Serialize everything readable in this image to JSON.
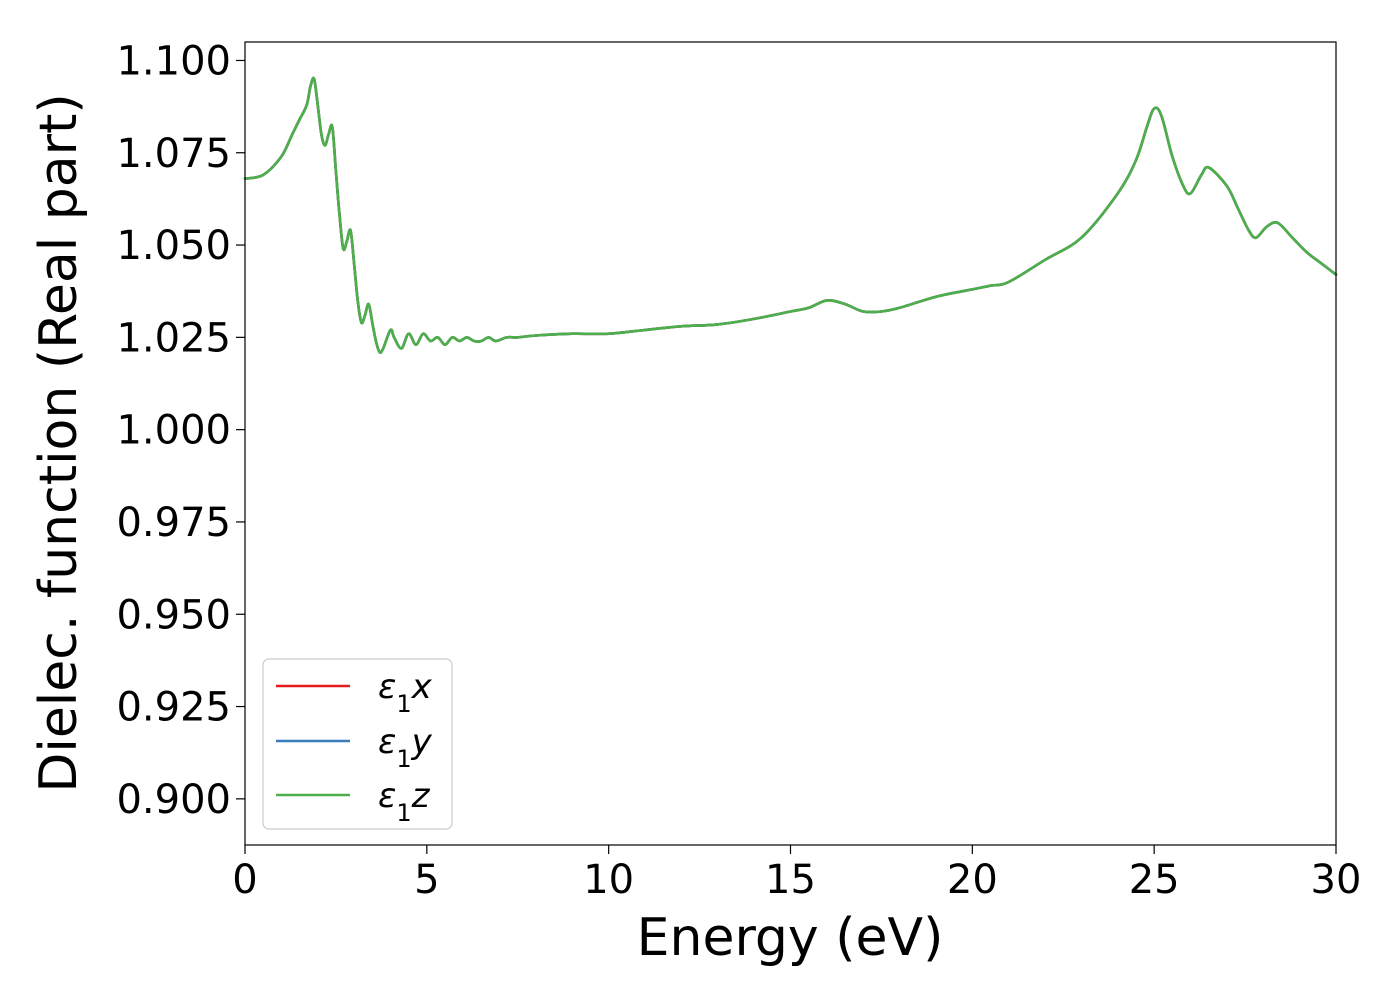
{
  "chart_data": {
    "type": "line",
    "xlabel": "Energy (eV)",
    "ylabel": "Dielec. function (Real part)",
    "xlim": [
      0,
      30
    ],
    "ylim": [
      0.8875,
      1.105
    ],
    "xticks": [
      0,
      5,
      10,
      15,
      20,
      25,
      30
    ],
    "xtick_labels": [
      "0",
      "5",
      "10",
      "15",
      "20",
      "25",
      "30"
    ],
    "yticks": [
      0.9,
      0.925,
      0.95,
      0.975,
      1.0,
      1.025,
      1.05,
      1.075,
      1.1
    ],
    "ytick_labels": [
      "0.900",
      "0.925",
      "0.950",
      "0.975",
      "1.000",
      "1.025",
      "1.050",
      "1.075",
      "1.100"
    ],
    "grid": false,
    "legend_position": "lower-left",
    "series": [
      {
        "name": "ε₁x",
        "name_base": "ε",
        "name_sub": "1",
        "name_suffix": "x",
        "color": "#e41a1c"
      },
      {
        "name": "ε₁y",
        "name_base": "ε",
        "name_sub": "1",
        "name_suffix": "y",
        "color": "#377eb8"
      },
      {
        "name": "ε₁z",
        "name_base": "ε",
        "name_sub": "1",
        "name_suffix": "z",
        "color": "#4daf4a"
      }
    ],
    "x": [
      0,
      0.5,
      1.0,
      1.3,
      1.5,
      1.7,
      1.8,
      1.9,
      2.0,
      2.1,
      2.2,
      2.3,
      2.4,
      2.5,
      2.6,
      2.7,
      2.8,
      2.9,
      3.0,
      3.1,
      3.2,
      3.3,
      3.4,
      3.5,
      3.6,
      3.7,
      3.8,
      4.0,
      4.1,
      4.3,
      4.5,
      4.7,
      4.9,
      5.1,
      5.3,
      5.5,
      5.7,
      5.9,
      6.1,
      6.3,
      6.5,
      6.7,
      6.9,
      7.2,
      7.5,
      8.0,
      9.0,
      10.0,
      11.0,
      12.0,
      13.0,
      14.0,
      15.0,
      15.5,
      16.0,
      16.5,
      17.0,
      17.5,
      18.0,
      19.0,
      20.0,
      20.5,
      21.0,
      22.0,
      23.0,
      24.0,
      24.5,
      24.8,
      25.0,
      25.2,
      25.5,
      25.8,
      26.0,
      26.3,
      26.5,
      27.0,
      27.3,
      27.6,
      27.8,
      28.1,
      28.4,
      28.8,
      29.2,
      29.6,
      30.0
    ],
    "y": [
      1.068,
      1.069,
      1.074,
      1.08,
      1.084,
      1.088,
      1.093,
      1.095,
      1.088,
      1.08,
      1.077,
      1.08,
      1.082,
      1.07,
      1.058,
      1.049,
      1.051,
      1.054,
      1.045,
      1.035,
      1.029,
      1.031,
      1.034,
      1.029,
      1.024,
      1.021,
      1.022,
      1.027,
      1.025,
      1.022,
      1.026,
      1.023,
      1.026,
      1.024,
      1.025,
      1.023,
      1.025,
      1.024,
      1.025,
      1.024,
      1.024,
      1.025,
      1.024,
      1.025,
      1.025,
      1.0255,
      1.026,
      1.026,
      1.027,
      1.028,
      1.0285,
      1.03,
      1.032,
      1.033,
      1.035,
      1.034,
      1.032,
      1.032,
      1.033,
      1.036,
      1.038,
      1.039,
      1.04,
      1.046,
      1.052,
      1.064,
      1.073,
      1.082,
      1.087,
      1.085,
      1.074,
      1.066,
      1.064,
      1.069,
      1.071,
      1.066,
      1.06,
      1.054,
      1.052,
      1.055,
      1.056,
      1.052,
      1.048,
      1.045,
      1.042
    ]
  }
}
